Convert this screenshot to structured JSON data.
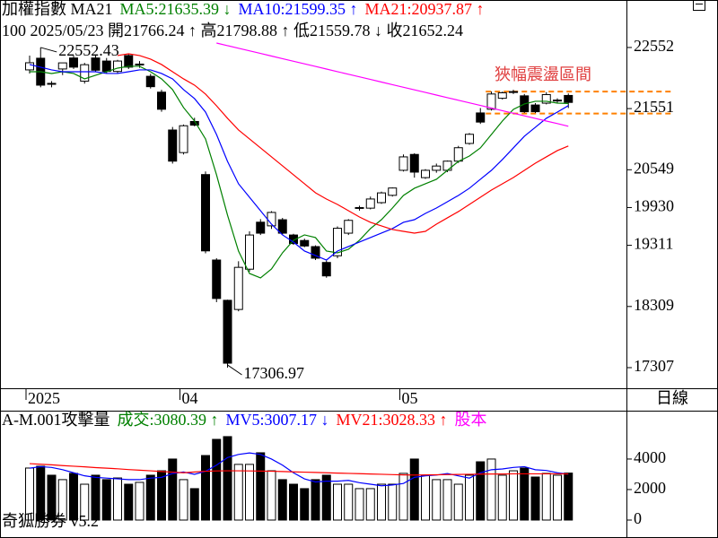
{
  "chart_data": [
    {
      "type": "candlestick",
      "title": "加權指數 MA21",
      "info": "100 2025/05/23 開21766.24 ↑ 高21798.88 ↑ 低21559.78 ↓ 收21652.24",
      "categories": [
        "2025",
        null,
        null,
        null,
        null,
        null,
        null,
        null,
        null,
        null,
        null,
        null,
        null,
        null,
        "04",
        null,
        null,
        null,
        null,
        null,
        null,
        null,
        null,
        null,
        null,
        null,
        null,
        null,
        null,
        null,
        null,
        null,
        null,
        null,
        "05",
        null,
        null,
        null,
        null,
        null,
        null,
        null,
        null,
        null,
        null,
        null,
        null,
        null,
        null,
        null
      ],
      "ohlc": [
        [
          22185,
          22420,
          22126,
          22302
        ],
        [
          22376,
          22552.43,
          21900,
          21935
        ],
        [
          21964,
          22000,
          21900,
          21960
        ],
        [
          22200,
          22300,
          22100,
          22300
        ],
        [
          22380,
          22420,
          22200,
          22230
        ],
        [
          22000,
          22300,
          21960,
          22270
        ],
        [
          22380,
          22420,
          22150,
          22180
        ],
        [
          22330,
          22380,
          22130,
          22160
        ],
        [
          22160,
          22350,
          22120,
          22330
        ],
        [
          22420,
          22450,
          22200,
          22230
        ],
        [
          22270,
          22330,
          22220,
          22280
        ],
        [
          22080,
          22120,
          21880,
          21910
        ],
        [
          21820,
          21860,
          21500,
          21540
        ],
        [
          21200,
          21250,
          20650,
          20690
        ],
        [
          20830,
          21290,
          20800,
          21270
        ],
        [
          21340,
          21400,
          21260,
          21280
        ],
        [
          20470,
          20520,
          19180,
          19220
        ],
        [
          19070,
          19100,
          18380,
          18440
        ],
        [
          18410,
          18420,
          17306.97,
          17380
        ],
        [
          18260,
          19050,
          18230,
          18950
        ],
        [
          18920,
          19540,
          18880,
          19480
        ],
        [
          19690,
          19740,
          19480,
          19510
        ],
        [
          19630,
          19870,
          19580,
          19850
        ],
        [
          19730,
          19760,
          19490,
          19510
        ],
        [
          19480,
          19500,
          19320,
          19340
        ],
        [
          19390,
          19420,
          19280,
          19300
        ],
        [
          19290,
          19310,
          19070,
          19100
        ],
        [
          19030,
          19060,
          18780,
          18810
        ],
        [
          19140,
          19620,
          19100,
          19590
        ],
        [
          19510,
          19740,
          19480,
          19720
        ],
        [
          19920,
          19960,
          19880,
          19930
        ],
        [
          19920,
          20110,
          19900,
          20070
        ],
        [
          20010,
          20190,
          19990,
          20170
        ],
        [
          20130,
          20260,
          20110,
          20250
        ],
        [
          20540,
          20800,
          20520,
          20760
        ],
        [
          20800,
          20820,
          20420,
          20510
        ],
        [
          20420,
          20560,
          20400,
          20540
        ],
        [
          20540,
          20650,
          20500,
          20610
        ],
        [
          20540,
          20700,
          20510,
          20690
        ],
        [
          20690,
          20940,
          20660,
          20910
        ],
        [
          20980,
          21150,
          20960,
          21130
        ],
        [
          21480,
          21560,
          21300,
          21330
        ],
        [
          21540,
          21830,
          21520,
          21790
        ],
        [
          21720,
          21830,
          21700,
          21810
        ],
        [
          21820,
          21860,
          21790,
          21830
        ],
        [
          21760,
          21790,
          21480,
          21500
        ],
        [
          21610,
          21640,
          21480,
          21500
        ],
        [
          21640,
          21820,
          21620,
          21780
        ],
        [
          21680,
          21720,
          21640,
          21690
        ],
        [
          21766.24,
          21798.88,
          21559.78,
          21652.24
        ]
      ],
      "up_color": "#ffffff",
      "down_color": "#000000",
      "series": [
        {
          "name": "MA5:21635.39 ↓",
          "color": "#008000",
          "values": [
            22155,
            22155,
            22126,
            22155,
            22126,
            22038,
            22097,
            22155,
            22214,
            22244,
            22244,
            22155,
            22038,
            21862,
            21568,
            21347,
            21054,
            20466,
            19805,
            19217,
            18850,
            18777,
            18924,
            19188,
            19394,
            19482,
            19438,
            19217,
            19188,
            19247,
            19394,
            19585,
            19731,
            19922,
            20128,
            20246,
            20319,
            20393,
            20539,
            20686,
            20774,
            20907,
            21127,
            21347,
            21538,
            21627,
            21671,
            21671,
            21641,
            21635.39
          ]
        },
        {
          "name": "MA10:21599.35 ↑",
          "color": "#0000ff",
          "values": [
            22273,
            22229,
            22185,
            22155,
            22155,
            22155,
            22155,
            22126,
            22126,
            22155,
            22185,
            22185,
            22126,
            22038,
            21862,
            21715,
            21494,
            21127,
            20686,
            20319,
            20099,
            19878,
            19658,
            19482,
            19364,
            19217,
            19144,
            19070,
            19217,
            19291,
            19364,
            19438,
            19511,
            19585,
            19688,
            19731,
            19834,
            19922,
            20025,
            20128,
            20246,
            20393,
            20539,
            20716,
            20907,
            21098,
            21245,
            21392,
            21494,
            21599.35
          ]
        },
        {
          "name": "MA21:20937.87 ↑",
          "color": "#ff0000",
          "values": [
            null,
            null,
            null,
            null,
            null,
            null,
            null,
            null,
            22420,
            22449,
            22420,
            22361,
            22273,
            22155,
            22038,
            21935,
            21788,
            21597,
            21392,
            21201,
            21054,
            20907,
            20760,
            20613,
            20466,
            20319,
            20172,
            20069,
            19981,
            19878,
            19775,
            19688,
            19629,
            19570,
            19540,
            19511,
            19540,
            19658,
            19761,
            19864,
            19981,
            20099,
            20216,
            20319,
            20422,
            20539,
            20657,
            20760,
            20863,
            20937.87
          ]
        },
        {
          "color": "#ff00ff",
          "values": [
            null,
            null,
            null,
            null,
            null,
            null,
            null,
            null,
            null,
            null,
            null,
            null,
            null,
            null,
            null,
            null,
            null,
            22625,
            22582,
            22540,
            22497,
            22455,
            22412,
            22369,
            22327,
            22284,
            22242,
            22199,
            22156,
            22114,
            22071,
            22029,
            21986,
            21943,
            21901,
            21858,
            21816,
            21773,
            21730,
            21688,
            21645,
            21603,
            21560,
            21517,
            21475,
            21432,
            21390,
            21347,
            21305,
            21262
          ]
        }
      ],
      "ylim": [
        16984,
        23330
      ],
      "yticks": [
        22552,
        21551,
        20549,
        19930,
        19311,
        18309,
        17307
      ],
      "annotations": [
        {
          "text": "22552.43"
        },
        {
          "text": "17306.97"
        }
      ],
      "band": {
        "label": "狹幅震盪區間",
        "label_color": "#e04040",
        "color": "#ff8000",
        "values": [
          21830,
          21470
        ]
      }
    },
    {
      "type": "bar",
      "title": "A-M.001攻擊量",
      "value_name": "成交:3080.39 ↑",
      "value_color": "#008000",
      "values": [
        3410,
        3530,
        2940,
        2650,
        3060,
        2350,
        2940,
        2650,
        2760,
        2350,
        2470,
        2940,
        3230,
        4000,
        2650,
        2060,
        4230,
        5290,
        5470,
        3650,
        3650,
        4410,
        3230,
        2650,
        2350,
        2060,
        2650,
        2940,
        2350,
        2350,
        2060,
        2060,
        2350,
        2350,
        3060,
        4000,
        2940,
        2650,
        2650,
        2350,
        2940,
        3820,
        4000,
        2940,
        3230,
        3410,
        2820,
        3060,
        2940,
        3080.39
      ],
      "series": [
        {
          "name": "MV5:3007.17 ↓",
          "color": "#0000ff",
          "values": [
            3400,
            3500,
            3450,
            3300,
            3100,
            2900,
            2800,
            2750,
            2700,
            2650,
            2650,
            2750,
            2800,
            3050,
            3150,
            3000,
            3200,
            3600,
            4100,
            4300,
            4400,
            4300,
            4000,
            3600,
            3100,
            2700,
            2500,
            2550,
            2550,
            2600,
            2450,
            2350,
            2250,
            2300,
            2400,
            2800,
            2900,
            2950,
            3050,
            2900,
            2750,
            3100,
            3300,
            3350,
            3450,
            3500,
            3300,
            3250,
            3100,
            3007.17
          ]
        },
        {
          "name": "MV21:3028.33 ↑",
          "color": "#ff0000",
          "values": [
            3700,
            3660,
            3620,
            3570,
            3530,
            3490,
            3440,
            3400,
            3360,
            3310,
            3270,
            3230,
            3180,
            3140,
            3100,
            3150,
            3200,
            3220,
            3230,
            3230,
            3220,
            3210,
            3200,
            3180,
            3160,
            3140,
            3120,
            3100,
            3080,
            3060,
            3040,
            3020,
            3000,
            2980,
            2960,
            2950,
            2960,
            2970,
            2980,
            2990,
            3000,
            3010,
            3020,
            3020,
            3030,
            3030,
            3030,
            3030,
            3030,
            3028.33
          ]
        }
      ],
      "extra_label": {
        "text": "股本",
        "color": "#ff00ff"
      },
      "ylim": [
        -1000,
        5760
      ],
      "yticks": [
        0,
        2000,
        4000
      ]
    }
  ],
  "period_label": "日線",
  "footer": "奇狐勝券 v5.2"
}
